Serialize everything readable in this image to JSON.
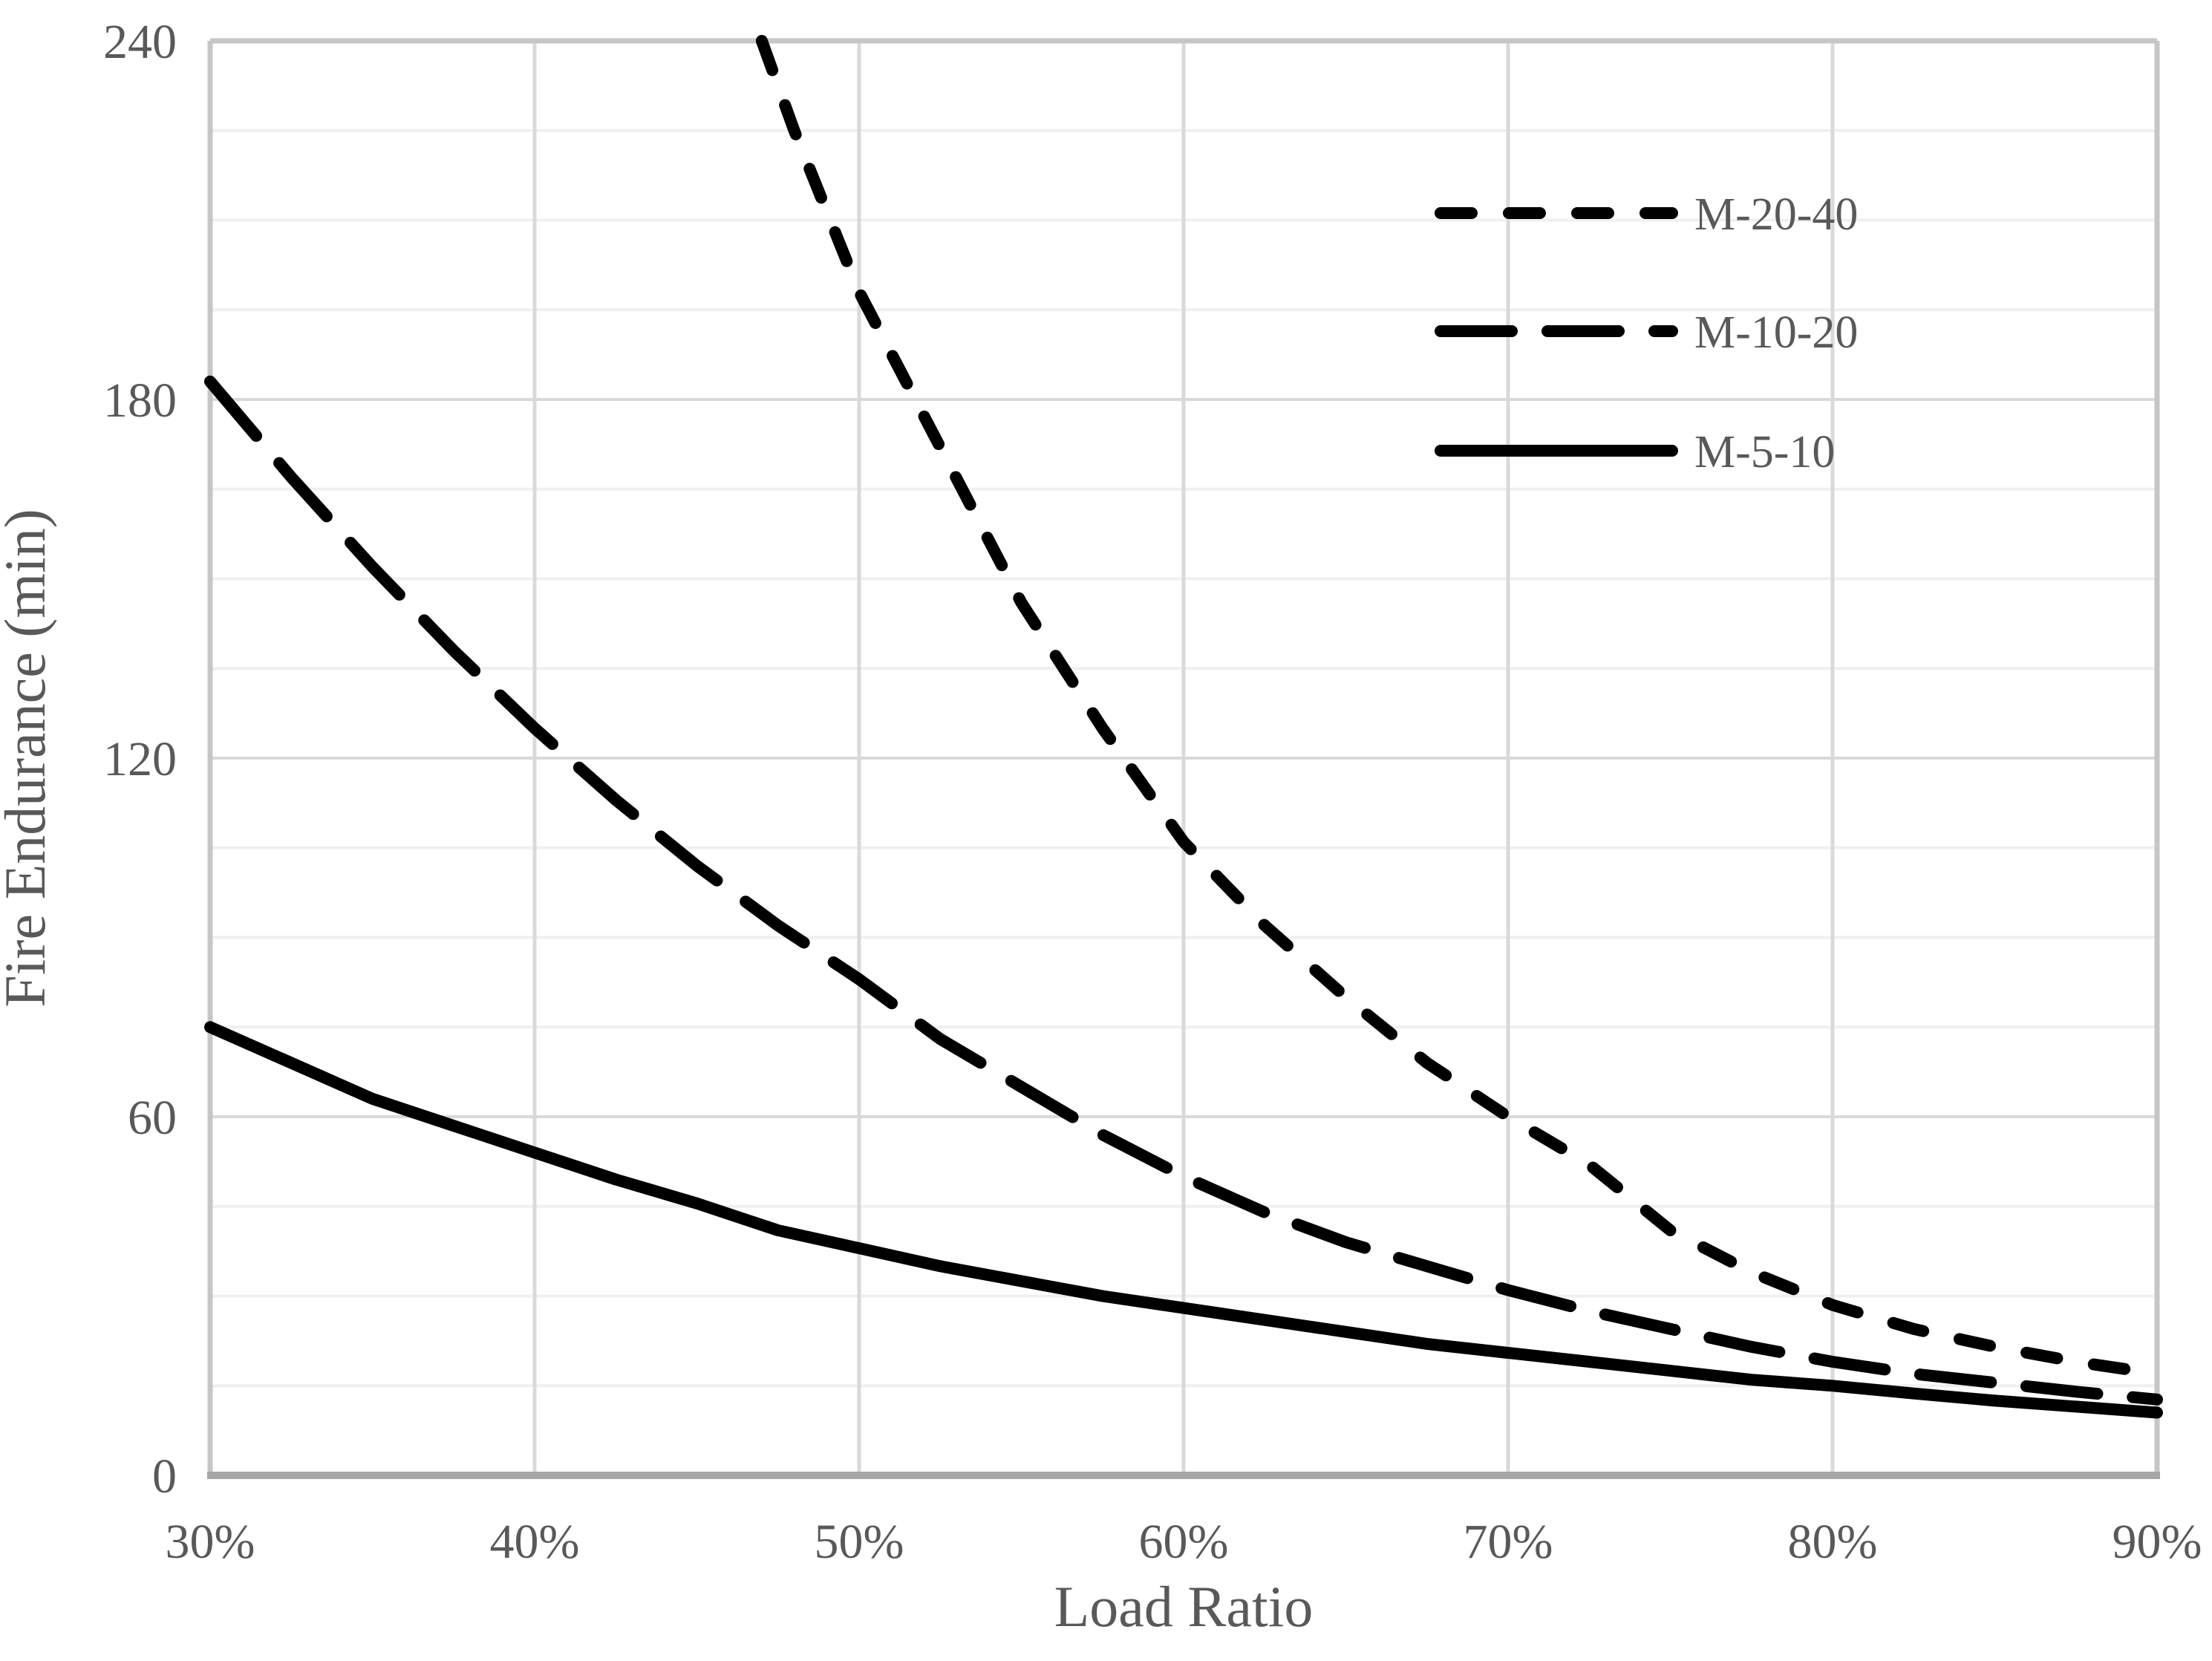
{
  "colors": {
    "background": "#ffffff",
    "text": "#595959",
    "grid_minor": "#f0f0f0",
    "grid_major": "#d9d9d9",
    "plot_border": "#c6c6c6",
    "axis_line": "#a6a6a6",
    "series_stroke": "#000000"
  },
  "chart_data": {
    "type": "line",
    "title": "",
    "xlabel": "Load Ratio",
    "ylabel": "Fire Endurance (min)",
    "xlim": [
      30,
      90
    ],
    "ylim": [
      0,
      240
    ],
    "x_tick_values": [
      30,
      40,
      50,
      60,
      70,
      80,
      90
    ],
    "x_tick_labels": [
      "30%",
      "40%",
      "50%",
      "60%",
      "70%",
      "80%",
      "90%"
    ],
    "y_tick_values": [
      0,
      60,
      120,
      180,
      240
    ],
    "y_tick_labels": [
      "0",
      "60",
      "120",
      "180",
      "240"
    ],
    "y_minor_unit": 15,
    "x_minor_unit": null,
    "grid": "major-and-minor-horizontal, major-vertical",
    "legend_position": "upper-right-inside",
    "series": [
      {
        "name": "M-20-40",
        "style": "dashed-short",
        "comment": "x = load ratio %, y = fire endurance minutes; curve enters plot top (240 min) near 47% load ratio",
        "points": [
          [
            47,
            240
          ],
          [
            48,
            225
          ],
          [
            50,
            198
          ],
          [
            52.5,
            172
          ],
          [
            55,
            146
          ],
          [
            57.5,
            125
          ],
          [
            60,
            106
          ],
          [
            62.5,
            92
          ],
          [
            65,
            80
          ],
          [
            67.5,
            69
          ],
          [
            70,
            60
          ],
          [
            72.5,
            52
          ],
          [
            75,
            41
          ],
          [
            77.5,
            34
          ],
          [
            80,
            28.5
          ],
          [
            82.5,
            24.5
          ],
          [
            85,
            21.5
          ],
          [
            87.5,
            19
          ],
          [
            90,
            17
          ]
        ]
      },
      {
        "name": "M-10-20",
        "style": "dashed-long",
        "points": [
          [
            30,
            183
          ],
          [
            32.5,
            167
          ],
          [
            35,
            152
          ],
          [
            37.5,
            138
          ],
          [
            40,
            125
          ],
          [
            42.5,
            113
          ],
          [
            45,
            102
          ],
          [
            47.5,
            92
          ],
          [
            50,
            83
          ],
          [
            52.5,
            73
          ],
          [
            55,
            65
          ],
          [
            57.5,
            57
          ],
          [
            60,
            50
          ],
          [
            62.5,
            44
          ],
          [
            65,
            39
          ],
          [
            67.5,
            35
          ],
          [
            70,
            31
          ],
          [
            72.5,
            27.5
          ],
          [
            75,
            24.5
          ],
          [
            77.5,
            21.5
          ],
          [
            80,
            19
          ],
          [
            82.5,
            17
          ],
          [
            85,
            15.5
          ],
          [
            87.5,
            14
          ],
          [
            90,
            12.7
          ]
        ]
      },
      {
        "name": "M-5-10",
        "style": "solid",
        "points": [
          [
            30,
            75
          ],
          [
            32.5,
            69
          ],
          [
            35,
            63
          ],
          [
            37.5,
            58.5
          ],
          [
            40,
            54
          ],
          [
            42.5,
            49.5
          ],
          [
            45,
            45.5
          ],
          [
            47.5,
            41
          ],
          [
            50,
            38
          ],
          [
            52.5,
            35
          ],
          [
            55,
            32.5
          ],
          [
            57.5,
            30
          ],
          [
            60,
            28
          ],
          [
            62.5,
            26
          ],
          [
            65,
            24
          ],
          [
            67.5,
            22
          ],
          [
            70,
            20.5
          ],
          [
            72.5,
            19
          ],
          [
            75,
            17.5
          ],
          [
            77.5,
            16
          ],
          [
            80,
            15
          ],
          [
            82.5,
            13.7
          ],
          [
            85,
            12.5
          ],
          [
            87.5,
            11.5
          ],
          [
            90,
            10.5
          ]
        ]
      }
    ]
  }
}
